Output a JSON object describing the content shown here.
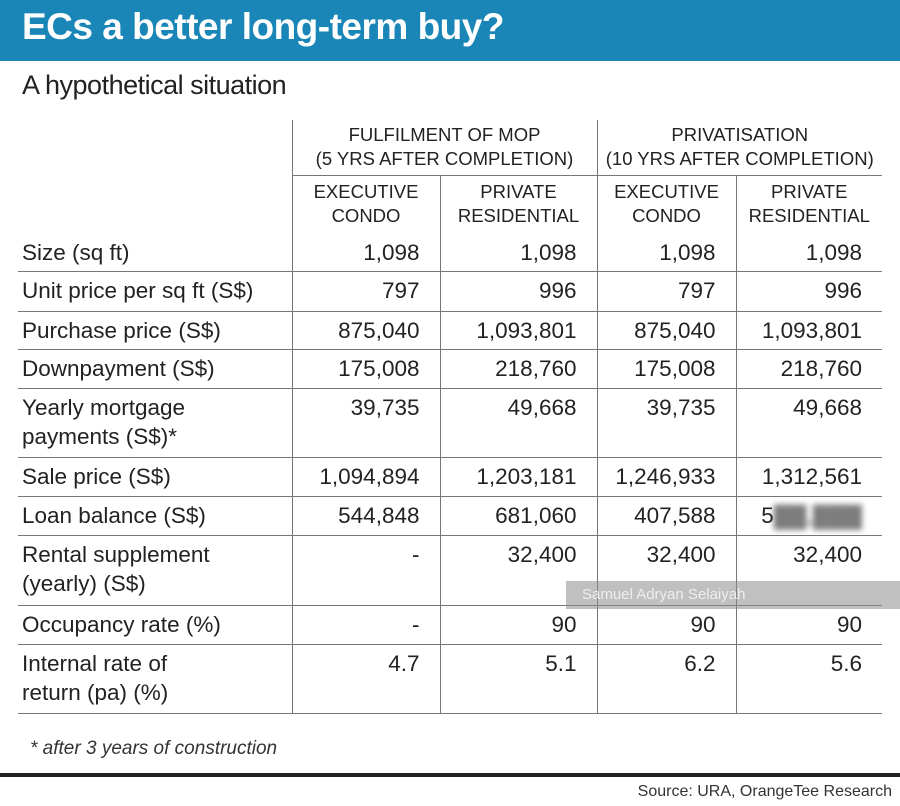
{
  "title": "ECs a better long-term buy?",
  "subtitle": "A hypothetical situation",
  "groups": [
    {
      "line1": "FULFILMENT OF MOP",
      "line2": "(5 YRS AFTER COMPLETION)"
    },
    {
      "line1": "PRIVATISATION",
      "line2": "(10 YRS AFTER COMPLETION)"
    }
  ],
  "subheaders": [
    {
      "line1": "EXECUTIVE",
      "line2": "CONDO"
    },
    {
      "line1": "PRIVATE",
      "line2": "RESIDENTIAL"
    },
    {
      "line1": "EXECUTIVE",
      "line2": "CONDO"
    },
    {
      "line1": "PRIVATE",
      "line2": "RESIDENTIAL"
    }
  ],
  "rows": [
    {
      "label": "Size (sq ft)",
      "values": [
        "1,098",
        "1,098",
        "1,098",
        "1,098"
      ]
    },
    {
      "label": "Unit price per sq ft (S$)",
      "values": [
        "797",
        "996",
        "797",
        "996"
      ]
    },
    {
      "label": "Purchase price (S$)",
      "values": [
        "875,040",
        "1,093,801",
        "875,040",
        "1,093,801"
      ]
    },
    {
      "label": "Downpayment (S$)",
      "values": [
        "175,008",
        "218,760",
        "175,008",
        "218,760"
      ]
    },
    {
      "label": "Yearly mortgage payments (S$)*",
      "values": [
        "39,735",
        "49,668",
        "39,735",
        "49,668"
      ]
    },
    {
      "label": "Sale price (S$)",
      "values": [
        "1,094,894",
        "1,203,181",
        "1,246,933",
        "1,312,561"
      ]
    },
    {
      "label": "Loan balance (S$)",
      "values": [
        "544,848",
        "681,060",
        "407,588",
        "5"
      ]
    },
    {
      "label": "Rental supplement (yearly) (S$)",
      "values": [
        "-",
        "32,400",
        "32,400",
        "32,400"
      ]
    },
    {
      "label": "Occupancy rate (%)",
      "values": [
        "-",
        "90",
        "90",
        "90"
      ]
    },
    {
      "label": "Internal rate of return (pa) (%)",
      "values": [
        "4.7",
        "5.1",
        "6.2",
        "5.6"
      ]
    }
  ],
  "watermark": "Samuel Adryan Selaiyah",
  "footnote": "* after 3 years of construction",
  "source": "Source: URA, OrangeTee Research"
}
